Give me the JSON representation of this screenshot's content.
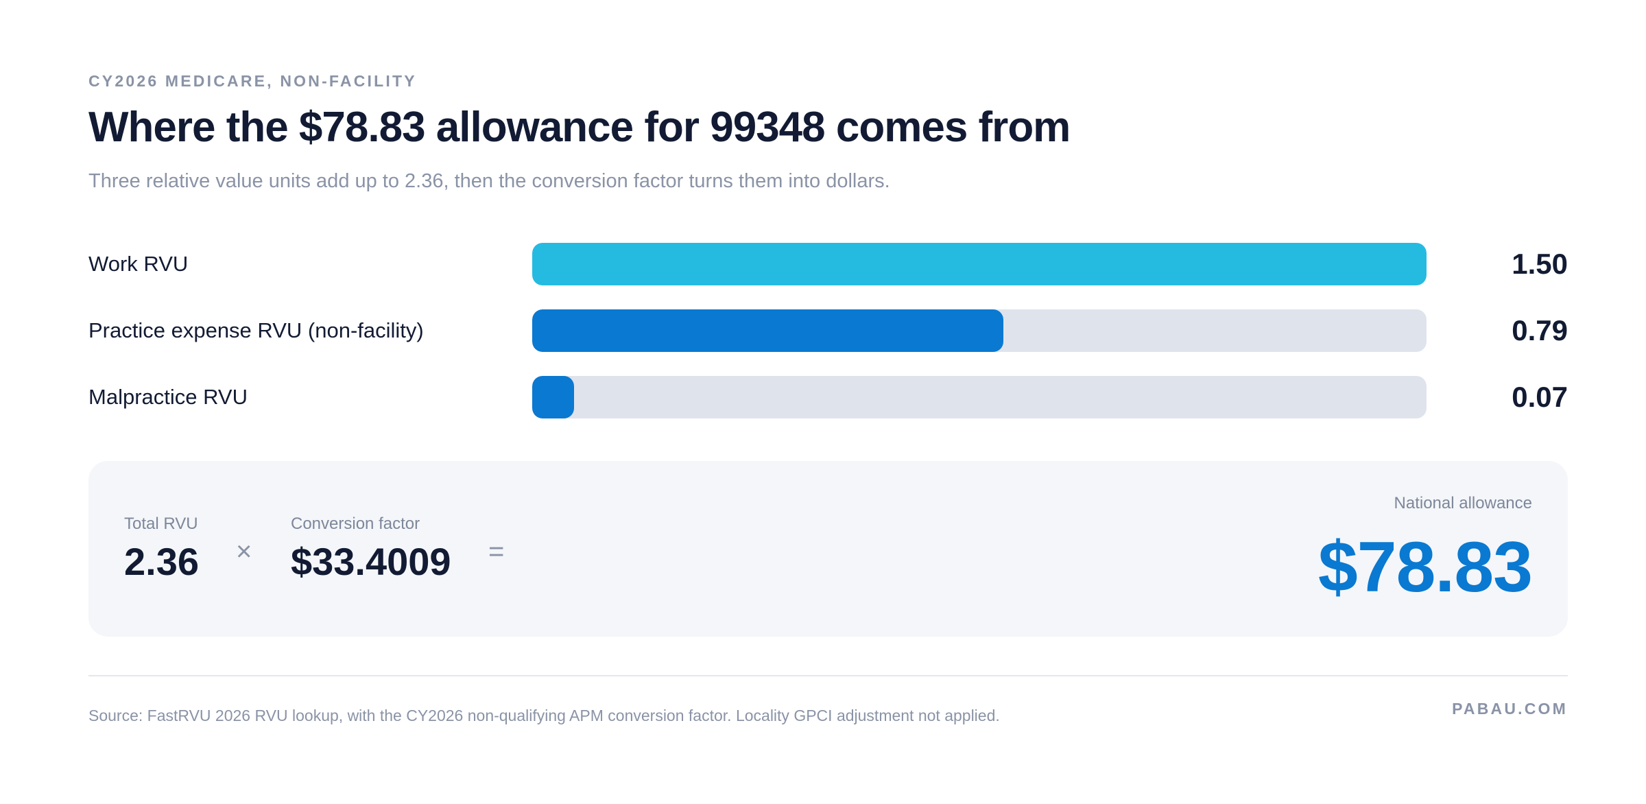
{
  "header": {
    "eyebrow": "CY2026 MEDICARE, NON-FACILITY",
    "title": "Where the $78.83 allowance for 99348 comes from",
    "subtitle": "Three relative value units add up to 2.36, then the conversion factor turns them into dollars."
  },
  "chart_data": {
    "type": "bar",
    "orientation": "horizontal",
    "title": "Where the $78.83 allowance for 99348 comes from",
    "subtitle": "Three relative value units add up to 2.36, then the conversion factor turns them into dollars.",
    "categories": [
      "Work RVU",
      "Practice expense RVU (non-facility)",
      "Malpractice RVU"
    ],
    "values": [
      1.5,
      0.79,
      0.07
    ],
    "value_labels": [
      "1.50",
      "0.79",
      "0.07"
    ],
    "colors": [
      "#25bbe1",
      "#0a79d1",
      "#0a79d1"
    ],
    "track_color": "#dfe3ec",
    "xlim": [
      0,
      1.5
    ],
    "grid": false,
    "legend": "none"
  },
  "summary": {
    "total_caption": "Total RVU",
    "total_value": "2.36",
    "times_symbol": "×",
    "cf_caption": "Conversion factor",
    "cf_value": "$33.4009",
    "equals_symbol": "=",
    "allowance_caption": "National allowance",
    "allowance_value": "$78.83",
    "accent_color": "#0a79d1"
  },
  "footer": {
    "source": "Source: FastRVU 2026 RVU lookup, with the CY2026 non-qualifying APM conversion factor. Locality GPCI adjustment not applied.",
    "brand": "PABAU.COM"
  }
}
